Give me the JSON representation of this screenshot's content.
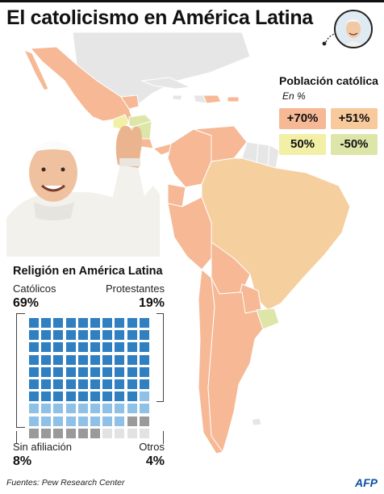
{
  "title": "El catolicismo en América Latina",
  "legend": {
    "title": "Población católica",
    "subtitle": "En %",
    "items": [
      {
        "label": "+70%",
        "color": "#f6b895"
      },
      {
        "label": "+51%",
        "color": "#f8c99a"
      },
      {
        "label": "50%",
        "color": "#f2f0a6"
      },
      {
        "label": "-50%",
        "color": "#dde6a8"
      }
    ]
  },
  "colors": {
    "over70": "#f6b895",
    "over51": "#f6cf9f",
    "fifty": "#f2f0a6",
    "under50": "#d7e3a4",
    "nodata": "#e6e6e6",
    "water": "#ffffff",
    "border": "#ffffff"
  },
  "religion": {
    "title": "Religión en América Latina",
    "catolicos_label": "Católicos",
    "catolicos_pct": "69%",
    "protestantes_label": "Protestantes",
    "protestantes_pct": "19%",
    "sinafiliacion_label": "Sin afiliación",
    "sinafiliacion_pct": "8%",
    "otros_label": "Otros",
    "otros_pct": "4%",
    "counts": {
      "catolicos": 69,
      "protestantes": 19,
      "sinafiliacion": 8,
      "otros": 4
    },
    "cell_colors": {
      "catolicos": "#2f7fc1",
      "protestantes": "#8fc0e6",
      "sinafiliacion": "#9a9a9a",
      "otros": "#e2e2e2"
    }
  },
  "source": "Fuentes: Pew Research Center",
  "credit": "AFP"
}
